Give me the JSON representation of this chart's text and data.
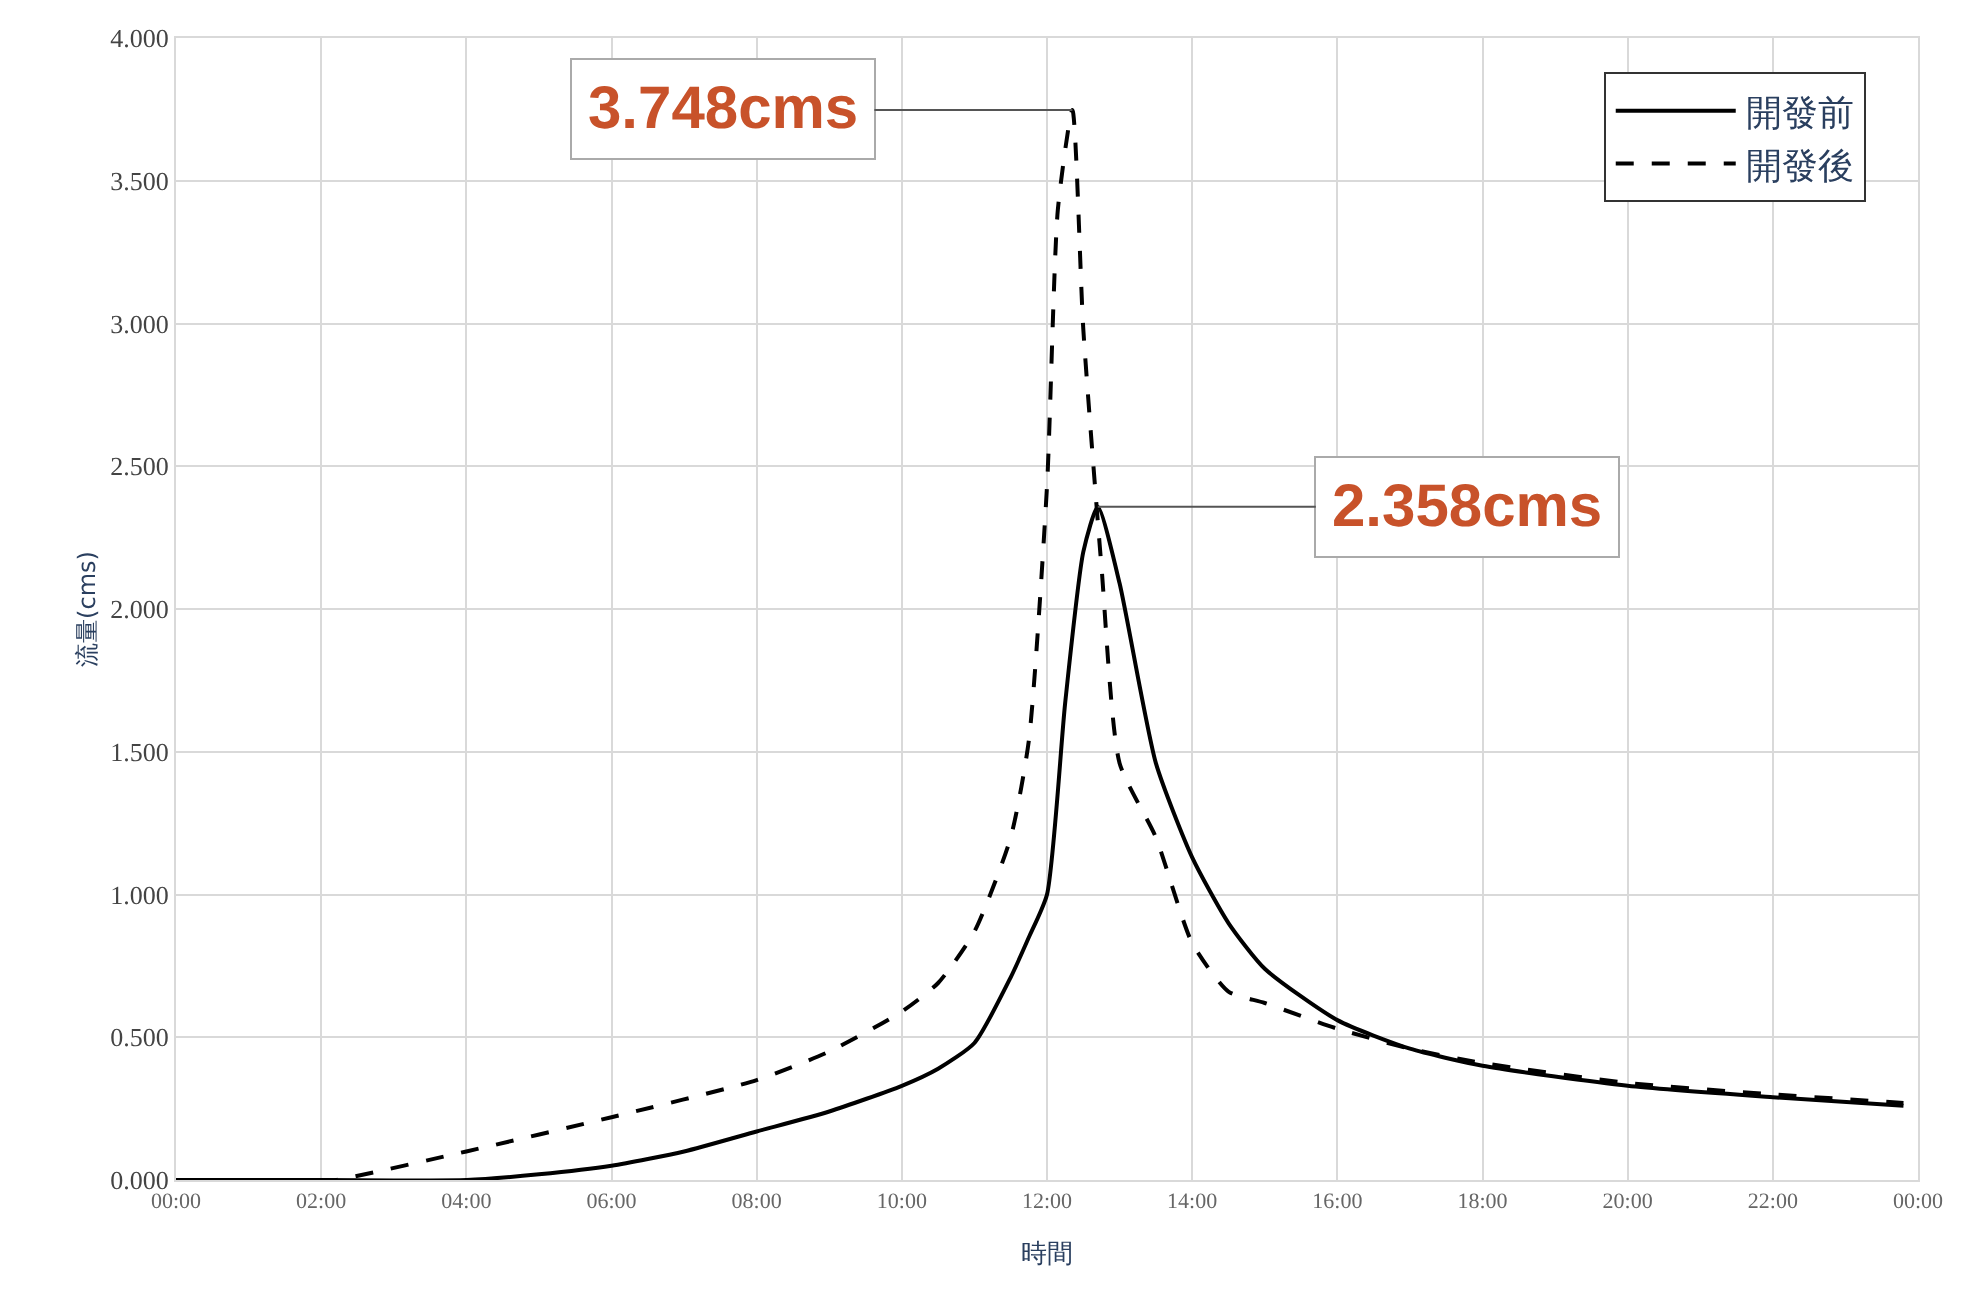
{
  "chart_data": {
    "type": "line",
    "xlabel": "時間",
    "ylabel": "流量(cms)",
    "xlim": [
      0,
      24
    ],
    "ylim": [
      0,
      4
    ],
    "xticks": [
      {
        "value": 0,
        "label": "00:00"
      },
      {
        "value": 2,
        "label": "02:00"
      },
      {
        "value": 4,
        "label": "04:00"
      },
      {
        "value": 6,
        "label": "06:00"
      },
      {
        "value": 8,
        "label": "08:00"
      },
      {
        "value": 10,
        "label": "10:00"
      },
      {
        "value": 12,
        "label": "12:00"
      },
      {
        "value": 14,
        "label": "14:00"
      },
      {
        "value": 16,
        "label": "16:00"
      },
      {
        "value": 18,
        "label": "18:00"
      },
      {
        "value": 20,
        "label": "20:00"
      },
      {
        "value": 22,
        "label": "22:00"
      },
      {
        "value": 24,
        "label": "00:00"
      }
    ],
    "yticks": [
      {
        "value": 0,
        "label": "0.000"
      },
      {
        "value": 0.5,
        "label": "0.500"
      },
      {
        "value": 1,
        "label": "1.000"
      },
      {
        "value": 1.5,
        "label": "1.500"
      },
      {
        "value": 2,
        "label": "2.000"
      },
      {
        "value": 2.5,
        "label": "2.500"
      },
      {
        "value": 3,
        "label": "3.000"
      },
      {
        "value": 3.5,
        "label": "3.500"
      },
      {
        "value": 4,
        "label": "4.000"
      }
    ],
    "grid": true,
    "legend": "top right",
    "marker": "none",
    "series": [
      {
        "name": "開發前",
        "color": "#000000",
        "line_style": "solid",
        "x": [
          0,
          2,
          4,
          5,
          6,
          7,
          8,
          9,
          10,
          10.5,
          11,
          11.5,
          11.75,
          12,
          12.25,
          12.5,
          12.7,
          13,
          13.5,
          14,
          14.5,
          15,
          16,
          17,
          18,
          20,
          22,
          23.8
        ],
        "values": [
          0,
          0,
          0,
          0.02,
          0.05,
          0.1,
          0.17,
          0.24,
          0.33,
          0.39,
          0.48,
          0.71,
          0.85,
          1.0,
          1.67,
          2.2,
          2.358,
          2.09,
          1.46,
          1.13,
          0.9,
          0.74,
          0.56,
          0.46,
          0.4,
          0.33,
          0.29,
          0.26
        ]
      },
      {
        "name": "開發後",
        "color": "#000000",
        "line_style": "dashed",
        "x": [
          0,
          2,
          2.2,
          4,
          6,
          8,
          9,
          10,
          10.5,
          11,
          11.5,
          11.75,
          12,
          12.15,
          12.35,
          12.5,
          12.75,
          13,
          13.5,
          14,
          14.5,
          15,
          16,
          17,
          18,
          20,
          22,
          23.8
        ],
        "values": [
          0,
          0,
          0,
          0.1,
          0.22,
          0.35,
          0.45,
          0.59,
          0.69,
          0.87,
          1.2,
          1.54,
          2.43,
          3.4,
          3.748,
          2.98,
          2.15,
          1.46,
          1.2,
          0.83,
          0.66,
          0.62,
          0.53,
          0.46,
          0.41,
          0.34,
          0.3,
          0.27
        ]
      }
    ],
    "annotations": [
      {
        "text": "3.748cms",
        "x": 12.35,
        "y": 3.748
      },
      {
        "text": "2.358cms",
        "x": 12.7,
        "y": 2.358
      }
    ]
  }
}
